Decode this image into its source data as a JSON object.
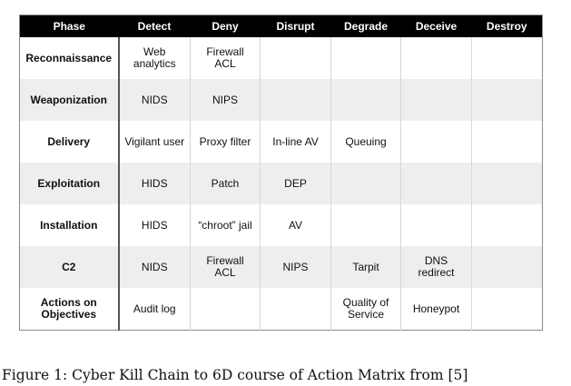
{
  "table": {
    "headers": [
      "Phase",
      "Detect",
      "Deny",
      "Disrupt",
      "Degrade",
      "Deceive",
      "Destroy"
    ],
    "rows": [
      [
        "Reconnaissance",
        "Web\nanalytics",
        "Firewall\nACL",
        "",
        "",
        "",
        ""
      ],
      [
        "Weaponization",
        "NIDS",
        "NIPS",
        "",
        "",
        "",
        ""
      ],
      [
        "Delivery",
        "Vigilant user",
        "Proxy filter",
        "In-line AV",
        "Queuing",
        "",
        ""
      ],
      [
        "Exploitation",
        "HIDS",
        "Patch",
        "DEP",
        "",
        "",
        ""
      ],
      [
        "Installation",
        "HIDS",
        "“chroot” jail",
        "AV",
        "",
        "",
        ""
      ],
      [
        "C2",
        "NIDS",
        "Firewall\nACL",
        "NIPS",
        "Tarpit",
        "DNS\nredirect",
        ""
      ],
      [
        "Actions on\nObjectives",
        "Audit log",
        "",
        "",
        "Quality of\nService",
        "Honeypot",
        ""
      ]
    ]
  },
  "caption": "Figure 1: Cyber Kill Chain to 6D course of Action Matrix from [5]"
}
